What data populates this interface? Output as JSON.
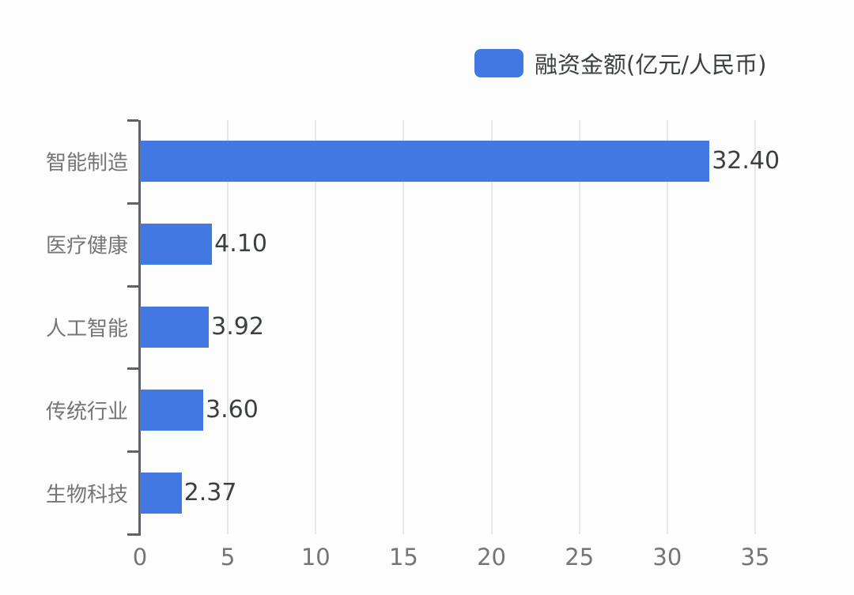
{
  "legend": {
    "label": "融资金额(亿元/人民币)"
  },
  "chart_data": {
    "type": "bar",
    "orientation": "horizontal",
    "title": "",
    "categories": [
      "智能制造",
      "医疗健康",
      "人工智能",
      "传统行业",
      "生物科技"
    ],
    "series": [
      {
        "name": "融资金额(亿元/人民币)",
        "values": [
          32.4,
          4.1,
          3.92,
          3.6,
          2.37
        ],
        "value_labels": [
          "32.40",
          "4.10",
          "3.92",
          "3.60",
          "2.37"
        ],
        "color": "#4377e2"
      }
    ],
    "xlabel": "",
    "ylabel": "",
    "xlim": [
      0,
      35
    ],
    "x_ticks": [
      "0",
      "5",
      "10",
      "15",
      "20",
      "25",
      "30",
      "35"
    ],
    "grid": true,
    "legend_position": "top-center",
    "styles": {
      "bar_color": "#4377e2",
      "axis_color": "#5f6368",
      "gridline_color": "#e7e7e7",
      "category_label_color": "#757575",
      "tick_label_color": "#757575",
      "value_label_color": "#3c4043",
      "legend_text_color": "#3c4043",
      "background": "#fdfdfd"
    }
  }
}
